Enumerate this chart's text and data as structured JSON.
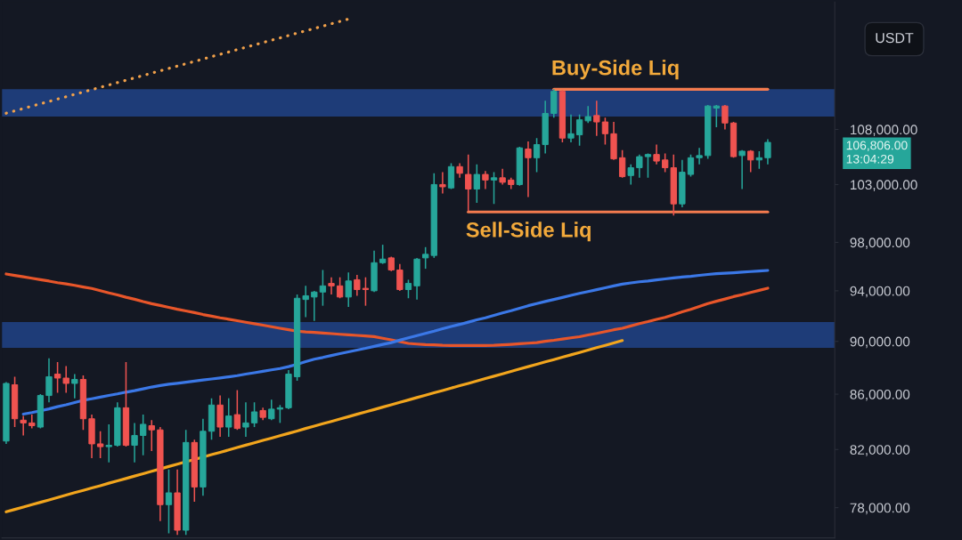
{
  "chart_data": {
    "type": "candlestick",
    "log": true,
    "tick_labels": "y",
    "ylabel": "USDT",
    "categories": [
      null,
      null,
      null,
      null,
      null,
      null,
      null,
      null,
      null,
      null,
      null,
      null,
      null,
      null,
      null,
      null,
      null,
      null,
      null,
      null,
      null,
      null,
      null,
      null,
      null,
      null,
      null,
      null,
      null,
      null,
      null,
      null,
      null,
      null,
      null,
      null,
      null,
      null,
      null,
      null,
      null,
      null,
      null,
      null,
      null,
      null,
      null,
      null,
      null,
      null,
      null,
      null,
      null,
      null,
      null,
      null,
      null,
      null,
      null,
      null,
      null,
      null,
      null,
      null,
      null,
      null,
      null,
      null,
      null,
      null,
      null,
      null,
      null,
      null,
      null,
      null,
      null,
      null,
      null,
      null,
      null,
      null,
      null,
      null,
      null,
      null,
      null,
      null,
      null,
      null
    ],
    "ohlc": [
      [
        82600,
        86900,
        82400,
        86800
      ],
      [
        86700,
        87300,
        83600,
        84200
      ],
      [
        84100,
        84400,
        83000,
        83900
      ],
      [
        83900,
        84500,
        83500,
        83700
      ],
      [
        83600,
        86000,
        83500,
        85900
      ],
      [
        85900,
        88700,
        85400,
        87300
      ],
      [
        87500,
        88400,
        86100,
        87200
      ],
      [
        87200,
        88100,
        86100,
        86800
      ],
      [
        86800,
        87500,
        85700,
        87100
      ],
      [
        87100,
        87400,
        83400,
        84200
      ],
      [
        84200,
        84500,
        81400,
        82400
      ],
      [
        82400,
        83300,
        81400,
        82200
      ],
      [
        82200,
        83800,
        81100,
        82300
      ],
      [
        82300,
        85400,
        82200,
        85000
      ],
      [
        85000,
        88400,
        82200,
        82300
      ],
      [
        82300,
        83900,
        81100,
        83000
      ],
      [
        83000,
        84500,
        81600,
        83800
      ],
      [
        83700,
        84100,
        81900,
        83400
      ],
      [
        83400,
        83600,
        77100,
        78200
      ],
      [
        78200,
        80600,
        76300,
        79000
      ],
      [
        79000,
        80600,
        76200,
        76500
      ],
      [
        76500,
        83400,
        76200,
        82500
      ],
      [
        82500,
        82700,
        78400,
        79400
      ],
      [
        79400,
        84200,
        78800,
        83300
      ],
      [
        83300,
        85700,
        82700,
        85200
      ],
      [
        85200,
        85900,
        82900,
        83600
      ],
      [
        83600,
        85700,
        82900,
        84400
      ],
      [
        84500,
        86300,
        83400,
        83500
      ],
      [
        83600,
        85400,
        82900,
        83900
      ],
      [
        83900,
        85400,
        83600,
        84700
      ],
      [
        84800,
        85000,
        84100,
        84300
      ],
      [
        84200,
        85600,
        84100,
        84900
      ],
      [
        84900,
        85200,
        83900,
        85000
      ],
      [
        85000,
        87800,
        84900,
        87500
      ],
      [
        87300,
        93700,
        87000,
        93400
      ],
      [
        93300,
        94400,
        91900,
        93600
      ],
      [
        93500,
        94000,
        91600,
        93900
      ],
      [
        93900,
        95700,
        92800,
        94400
      ],
      [
        94600,
        95100,
        93700,
        94400
      ],
      [
        94400,
        95100,
        93400,
        93500
      ],
      [
        93500,
        95500,
        92700,
        94800
      ],
      [
        94900,
        95300,
        93600,
        94100
      ],
      [
        94200,
        95100,
        92800,
        94100
      ],
      [
        94000,
        97300,
        93900,
        96300
      ],
      [
        96300,
        97800,
        96200,
        96600
      ],
      [
        96700,
        96800,
        95600,
        95700
      ],
      [
        95700,
        96200,
        94000,
        94100
      ],
      [
        94100,
        94900,
        93400,
        94600
      ],
      [
        94400,
        96700,
        93300,
        96600
      ],
      [
        96700,
        97600,
        95800,
        97000
      ],
      [
        96900,
        104000,
        96700,
        103000
      ],
      [
        103000,
        104100,
        102200,
        102800
      ],
      [
        102700,
        104900,
        102600,
        104600
      ],
      [
        104600,
        104900,
        103600,
        104000
      ],
      [
        103900,
        105700,
        100700,
        102600
      ],
      [
        102600,
        104800,
        101400,
        103900
      ],
      [
        103900,
        104200,
        102600,
        103400
      ],
      [
        103400,
        104100,
        101300,
        103600
      ],
      [
        103600,
        104400,
        103000,
        103200
      ],
      [
        103400,
        103600,
        102600,
        103000
      ],
      [
        103000,
        106400,
        102900,
        106300
      ],
      [
        106200,
        106900,
        101900,
        105400
      ],
      [
        105400,
        107200,
        104100,
        106600
      ],
      [
        106600,
        110700,
        105800,
        109500
      ],
      [
        109500,
        111800,
        109100,
        111600
      ],
      [
        111600,
        111700,
        106800,
        107200
      ],
      [
        107200,
        109400,
        106800,
        107600
      ],
      [
        107500,
        109400,
        106500,
        108900
      ],
      [
        108800,
        110200,
        108600,
        109200
      ],
      [
        109300,
        110700,
        107400,
        108700
      ],
      [
        108700,
        109100,
        106600,
        107600
      ],
      [
        107600,
        108700,
        105200,
        105300
      ],
      [
        105400,
        106100,
        103600,
        103700
      ],
      [
        103800,
        104800,
        103000,
        104500
      ],
      [
        104500,
        105700,
        103600,
        105500
      ],
      [
        105500,
        105800,
        103600,
        105700
      ],
      [
        105700,
        106600,
        104800,
        105100
      ],
      [
        105200,
        105800,
        104100,
        104500
      ],
      [
        104500,
        105700,
        100300,
        101300
      ],
      [
        101300,
        105200,
        101000,
        104100
      ],
      [
        103900,
        105700,
        103700,
        105400
      ],
      [
        105400,
        106300,
        104800,
        105600
      ],
      [
        105600,
        110300,
        105300,
        110200
      ],
      [
        110000,
        110300,
        108200,
        110200
      ],
      [
        110200,
        110300,
        108000,
        108600
      ],
      [
        108600,
        108700,
        105400,
        105500
      ],
      [
        105600,
        106100,
        102600,
        106000
      ],
      [
        106000,
        106100,
        104100,
        105200
      ],
      [
        105200,
        106000,
        104400,
        105400
      ],
      [
        105400,
        107100,
        104800,
        106806
      ]
    ],
    "colors": [
      "#26a69a",
      "#ef5350",
      "#ef5350",
      "#ef5350",
      "#26a69a",
      "#26a69a",
      "#ef5350",
      "#ef5350",
      "#26a69a",
      "#ef5350",
      "#ef5350",
      "#ef5350",
      "#26a69a",
      "#26a69a",
      "#ef5350",
      "#26a69a",
      "#26a69a",
      "#ef5350",
      "#ef5350",
      "#26a69a",
      "#ef5350",
      "#26a69a",
      "#ef5350",
      "#26a69a",
      "#26a69a",
      "#ef5350",
      "#26a69a",
      "#ef5350",
      "#26a69a",
      "#26a69a",
      "#ef5350",
      "#26a69a",
      "#26a69a",
      "#26a69a",
      "#26a69a",
      "#26a69a",
      "#26a69a",
      "#26a69a",
      "#ef5350",
      "#ef5350",
      "#26a69a",
      "#ef5350",
      "#ef5350",
      "#26a69a",
      "#26a69a",
      "#ef5350",
      "#ef5350",
      "#26a69a",
      "#26a69a",
      "#26a69a",
      "#26a69a",
      "#ef5350",
      "#26a69a",
      "#ef5350",
      "#ef5350",
      "#26a69a",
      "#ef5350",
      "#26a69a",
      "#ef5350",
      "#ef5350",
      "#26a69a",
      "#ef5350",
      "#26a69a",
      "#26a69a",
      "#26a69a",
      "#ef5350",
      "#26a69a",
      "#26a69a",
      "#26a69a",
      "#ef5350",
      "#ef5350",
      "#ef5350",
      "#ef5350",
      "#26a69a",
      "#26a69a",
      "#26a69a",
      "#ef5350",
      "#ef5350",
      "#ef5350",
      "#26a69a",
      "#26a69a",
      "#26a69a",
      "#26a69a",
      "#26a69a",
      "#ef5350",
      "#ef5350",
      "#26a69a",
      "#ef5350",
      "#26a69a",
      "#26a69a"
    ],
    "series": [
      {
        "type": "line",
        "color": "#e8562a",
        "values": [
          95370,
          95250,
          95140,
          95020,
          94900,
          94790,
          94660,
          94560,
          94440,
          94310,
          94190,
          94010,
          93830,
          93670,
          93480,
          93320,
          93130,
          92960,
          92820,
          92670,
          92520,
          92390,
          92250,
          92100,
          91970,
          91840,
          91730,
          91610,
          91490,
          91380,
          91260,
          91140,
          91020,
          90900,
          90790,
          90730,
          90690,
          90640,
          90600,
          90550,
          90510,
          90460,
          90420,
          90370,
          90240,
          90120,
          89980,
          89840,
          89790,
          89750,
          89730,
          89690,
          89680,
          89680,
          89680,
          89680,
          89680,
          89690,
          89730,
          89770,
          89820,
          89860,
          89900,
          90000,
          90080,
          90180,
          90270,
          90360,
          90500,
          90620,
          90760,
          90900,
          91020,
          91200,
          91380,
          91540,
          91720,
          91880,
          92090,
          92310,
          92510,
          92740,
          92970,
          93160,
          93340,
          93530,
          93690,
          93870,
          94040,
          94210
        ]
      },
      {
        "type": "line",
        "color": "#3b78e7",
        "values": [
          null,
          null,
          84540,
          84650,
          84780,
          84920,
          85080,
          85220,
          85380,
          85550,
          85660,
          85780,
          85910,
          86020,
          86150,
          86260,
          86390,
          86530,
          86640,
          86740,
          86810,
          86890,
          86970,
          87060,
          87130,
          87210,
          87290,
          87380,
          87500,
          87600,
          87710,
          87820,
          87920,
          88060,
          88240,
          88440,
          88630,
          88760,
          88910,
          89050,
          89190,
          89330,
          89460,
          89610,
          89760,
          89900,
          90090,
          90270,
          90440,
          90620,
          90790,
          90980,
          91160,
          91320,
          91500,
          91680,
          91840,
          92030,
          92230,
          92400,
          92600,
          92800,
          92970,
          93140,
          93300,
          93460,
          93630,
          93790,
          93940,
          94090,
          94240,
          94400,
          94540,
          94640,
          94730,
          94800,
          94890,
          94970,
          95050,
          95120,
          95180,
          95260,
          95330,
          95390,
          95430,
          95470,
          95520,
          95570,
          95610,
          95660
        ]
      },
      {
        "type": "line",
        "color": "#f2a51d",
        "values": [
          77720,
          77880,
          78040,
          78200,
          78360,
          78520,
          78680,
          78850,
          79010,
          79170,
          79330,
          79490,
          79660,
          79820,
          79980,
          80150,
          80310,
          80480,
          80640,
          80810,
          80970,
          81140,
          81300,
          81470,
          81640,
          81800,
          81970,
          82140,
          82310,
          82480,
          82650,
          82810,
          82980,
          83150,
          83320,
          83500,
          83670,
          83840,
          84010,
          84180,
          84350,
          84530,
          84700,
          84870,
          85050,
          85220,
          85400,
          85570,
          85750,
          85920,
          86100,
          86270,
          86450,
          86630,
          86800,
          86980,
          87160,
          87340,
          87520,
          87700,
          87880,
          88060,
          88240,
          88420,
          88600,
          88780,
          88960,
          89140,
          89330,
          89510,
          89690,
          89880,
          90060,
          null,
          null,
          null,
          null,
          null,
          null,
          null,
          null,
          null,
          null,
          null,
          null,
          null,
          null,
          null,
          null,
          null
        ]
      },
      {
        "type": "line",
        "color": "#f0a04a",
        "line_style": "dotted",
        "values": [
          109520,
          109740,
          109960,
          110190,
          110410,
          110630,
          110860,
          111080,
          111310,
          111530,
          111760,
          111990,
          112210,
          112440,
          112670,
          112900,
          113130,
          113360,
          113590,
          113820,
          114050,
          114280,
          114510,
          114740,
          114980,
          115210,
          115440,
          115680,
          115910,
          116150,
          116380,
          116620,
          116850,
          117090,
          117330,
          117570,
          117800,
          118040,
          118280,
          118520,
          118760,
          null,
          null,
          null,
          null,
          null,
          null,
          null,
          null,
          null,
          null,
          null,
          null,
          null,
          null,
          null,
          null,
          null,
          null,
          null,
          null,
          null,
          null,
          null,
          null,
          null,
          null,
          null,
          null,
          null,
          null,
          null,
          null,
          null,
          null,
          null,
          null,
          null,
          null,
          null,
          null,
          null,
          null,
          null,
          null,
          null,
          null,
          null,
          null,
          null
        ]
      },
      {
        "type": "line",
        "name": "Buy-Side Liq",
        "color": "#f47b4f",
        "values": [
          null,
          null,
          null,
          null,
          null,
          null,
          null,
          null,
          null,
          null,
          null,
          null,
          null,
          null,
          null,
          null,
          null,
          null,
          null,
          null,
          null,
          null,
          null,
          null,
          null,
          null,
          null,
          null,
          null,
          null,
          null,
          null,
          null,
          null,
          null,
          null,
          null,
          null,
          null,
          null,
          null,
          null,
          null,
          null,
          null,
          null,
          null,
          null,
          null,
          null,
          null,
          null,
          null,
          null,
          null,
          null,
          null,
          null,
          null,
          null,
          null,
          null,
          null,
          null,
          111800,
          111800,
          111800,
          111800,
          111800,
          111800,
          111800,
          111800,
          111800,
          111800,
          111800,
          111800,
          111800,
          111800,
          111800,
          111800,
          111800,
          111800,
          111800,
          111800,
          111800,
          111800,
          111800,
          111800,
          111800,
          111800
        ]
      },
      {
        "type": "line",
        "name": "Sell-Side Liq",
        "color": "#f47b4f",
        "values": [
          null,
          null,
          null,
          null,
          null,
          null,
          null,
          null,
          null,
          null,
          null,
          null,
          null,
          null,
          null,
          null,
          null,
          null,
          null,
          null,
          null,
          null,
          null,
          null,
          null,
          null,
          null,
          null,
          null,
          null,
          null,
          null,
          null,
          null,
          null,
          null,
          null,
          null,
          null,
          null,
          null,
          null,
          null,
          null,
          null,
          null,
          null,
          null,
          null,
          null,
          null,
          null,
          null,
          null,
          100600,
          100600,
          100600,
          100600,
          100600,
          100600,
          100600,
          100600,
          100600,
          100600,
          100600,
          100600,
          100600,
          100600,
          100600,
          100600,
          100600,
          100600,
          100600,
          100600,
          100600,
          100600,
          100600,
          100600,
          100600,
          100600,
          100600,
          100600,
          100600,
          100600,
          100600,
          100600,
          100600,
          100600,
          100600,
          100600
        ]
      }
    ],
    "bands": [
      {
        "axis": "y",
        "from": 109200,
        "to": 111800,
        "color": "#1e3c78"
      },
      {
        "axis": "y",
        "from": 89500,
        "to": 91500,
        "color": "#1e3c78"
      }
    ],
    "annotations": [
      "106,806.00\n13:04:29"
    ],
    "ylim": [
      76000,
      120500
    ],
    "yticks": [
      {
        "value": 78000,
        "label": "78,000.00"
      },
      {
        "value": 82000,
        "label": "82,000.00"
      },
      {
        "value": 86000,
        "label": "86,000.00"
      },
      {
        "value": 90000,
        "label": "90,000.00"
      },
      {
        "value": 94000,
        "label": "94,000.00"
      },
      {
        "value": 98000,
        "label": "98,000.00"
      },
      {
        "value": 103000,
        "label": "103,000.00"
      },
      {
        "value": 108000,
        "label": "108,000.00"
      }
    ]
  }
}
